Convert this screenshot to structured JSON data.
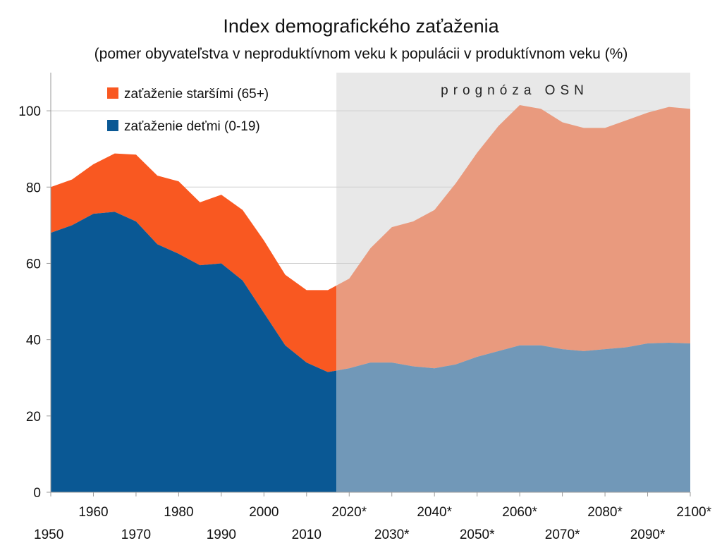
{
  "chart_data": {
    "type": "area",
    "title": "Index demografického zaťaženia",
    "subtitle": "(pomer obyvateľstva v neproduktívnom veku k populácii v produktívnom veku (%)",
    "xlabel": "",
    "ylabel": "",
    "x": [
      1950,
      1955,
      1960,
      1965,
      1970,
      1975,
      1980,
      1985,
      1990,
      1995,
      2000,
      2005,
      2010,
      2015,
      2020,
      2025,
      2030,
      2035,
      2040,
      2045,
      2050,
      2055,
      2060,
      2065,
      2070,
      2075,
      2080,
      2085,
      2090,
      2095,
      2100
    ],
    "x_tick_labels": [
      "1950",
      "1960",
      "1970",
      "1980",
      "1990",
      "2000",
      "2010",
      "2020*",
      "2030*",
      "2040*",
      "2050*",
      "2060*",
      "2070*",
      "2080*",
      "2090*",
      "2100*"
    ],
    "x_tick_values": [
      1950,
      1960,
      1970,
      1980,
      1990,
      2000,
      2010,
      2020,
      2030,
      2040,
      2050,
      2060,
      2070,
      2080,
      2090,
      2100
    ],
    "xlim": [
      1950,
      2100
    ],
    "ylim": [
      0,
      110
    ],
    "y_ticks": [
      0,
      20,
      40,
      60,
      80,
      100
    ],
    "grid": true,
    "legend_position": "top-left",
    "series": [
      {
        "name": "zaťaženie deťmi (0-19)",
        "stacking": "bottom",
        "color": "#0a5894",
        "forecast_color": "#7198b8",
        "values": [
          68,
          70,
          73,
          73.5,
          71,
          65,
          62.5,
          59.5,
          60,
          55.5,
          47,
          38.5,
          34,
          31.5,
          32.5,
          34,
          34,
          33,
          32.5,
          33.5,
          35.5,
          37,
          38.5,
          38.5,
          37.5,
          37,
          37.5,
          38,
          39,
          39.2,
          39
        ]
      },
      {
        "name": "zaťaženie staršími (65+)",
        "stacking": "top",
        "color": "#f95821",
        "forecast_color": "#e99a7e",
        "totals": [
          80,
          82,
          86,
          88.8,
          88.5,
          83,
          81.5,
          76,
          78,
          74,
          66,
          57,
          53,
          53,
          56,
          64,
          69.5,
          71,
          74,
          81,
          89,
          96,
          101.5,
          100.5,
          97,
          95.5,
          95.5,
          97.5,
          99.5,
          101,
          100.5
        ]
      }
    ],
    "forecast_start": 2017,
    "annotations": [
      {
        "text": "prognóza OSN",
        "region": "forecast"
      }
    ],
    "colors": {
      "forecast_band": "#e8e8e8",
      "grid": "#cfcfcf"
    }
  }
}
